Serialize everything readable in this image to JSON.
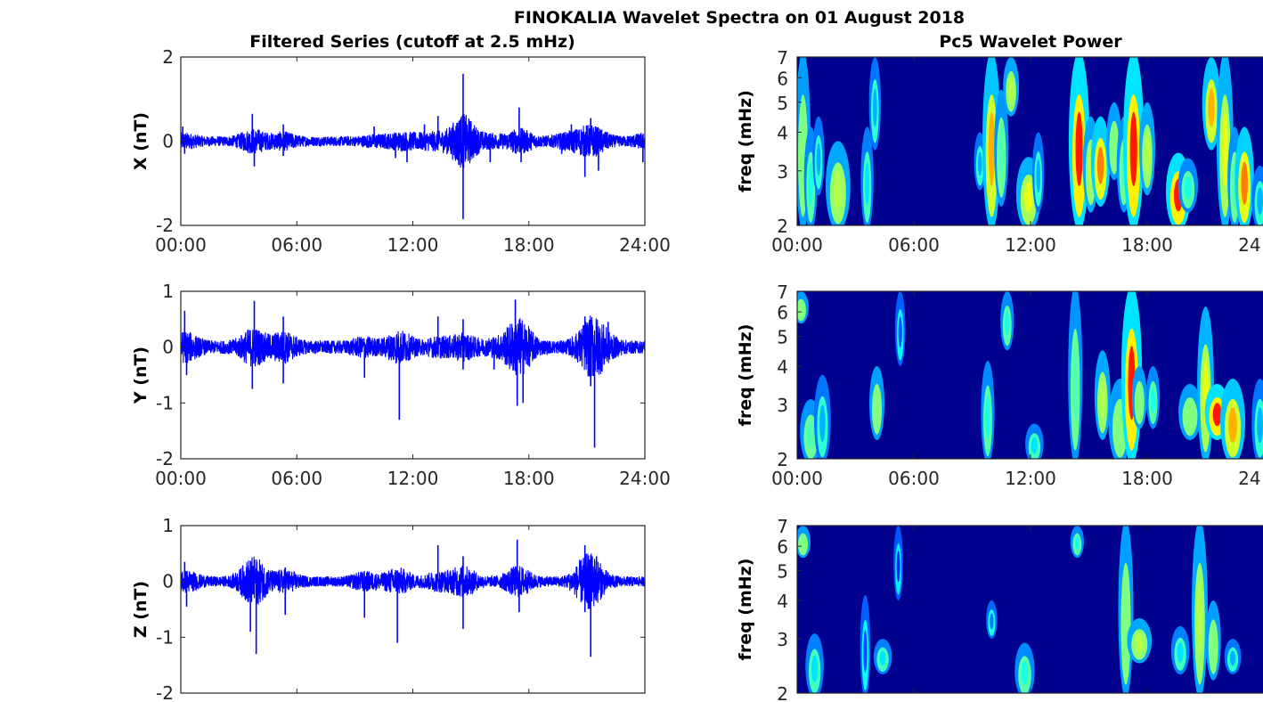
{
  "chart_data": {
    "title": "FINOKALIA Wavelet Spectra on 01 August 2018",
    "colors": {
      "series_line": "#0000ff",
      "axes": "#262626",
      "background_low": "#00008f"
    },
    "columns": [
      {
        "title": "Filtered Series (cutoff at 2.5 mHz)",
        "type": "line"
      },
      {
        "title": "Pc5 Wavelet Power",
        "type": "heatmap"
      }
    ],
    "x_ticks": [
      "00:00",
      "06:00",
      "12:00",
      "18:00",
      "24:00"
    ],
    "x_range_hours": [
      0,
      24
    ],
    "line_panels": [
      {
        "component": "X",
        "ylabel": "X (nT)",
        "ylim": [
          -2,
          2
        ],
        "yticks": [
          "2",
          "0",
          "-2"
        ],
        "ytick_values": [
          2,
          0,
          -2
        ],
        "show_xticks": true,
        "noise_amplitude": 0.09,
        "spikes": [
          [
            0.1,
            0.35
          ],
          [
            0.2,
            -0.3
          ],
          [
            3.7,
            0.65
          ],
          [
            3.8,
            -0.6
          ],
          [
            5.3,
            0.4
          ],
          [
            5.3,
            -0.35
          ],
          [
            10.0,
            0.35
          ],
          [
            11.1,
            -0.4
          ],
          [
            11.7,
            -0.5
          ],
          [
            12.6,
            0.4
          ],
          [
            13.3,
            0.6
          ],
          [
            14.6,
            1.6
          ],
          [
            14.6,
            -1.85
          ],
          [
            16.0,
            -0.5
          ],
          [
            17.5,
            0.8
          ],
          [
            17.6,
            -0.5
          ],
          [
            19.7,
            -0.3
          ],
          [
            20.2,
            0.4
          ],
          [
            20.9,
            -0.85
          ],
          [
            21.2,
            0.55
          ],
          [
            21.6,
            -0.7
          ],
          [
            23.9,
            -0.5
          ]
        ]
      },
      {
        "component": "Y",
        "ylabel": "Y (nT)",
        "ylim": [
          -2,
          1
        ],
        "yticks": [
          "1",
          "0",
          "-1",
          "-2"
        ],
        "ytick_values": [
          1,
          0,
          -1,
          -2
        ],
        "show_xticks": true,
        "noise_amplitude": 0.09,
        "spikes": [
          [
            0.2,
            0.65
          ],
          [
            0.3,
            -0.5
          ],
          [
            3.8,
            0.83
          ],
          [
            3.7,
            -0.75
          ],
          [
            5.3,
            0.55
          ],
          [
            5.3,
            -0.65
          ],
          [
            9.5,
            -0.55
          ],
          [
            11.3,
            -1.3
          ],
          [
            13.3,
            0.55
          ],
          [
            14.6,
            0.5
          ],
          [
            14.6,
            -0.4
          ],
          [
            16.2,
            -0.4
          ],
          [
            17.3,
            0.85
          ],
          [
            17.4,
            -1.05
          ],
          [
            17.7,
            -1.0
          ],
          [
            20.9,
            0.55
          ],
          [
            21.2,
            -0.7
          ],
          [
            21.4,
            -1.8
          ],
          [
            22.1,
            0.45
          ]
        ]
      },
      {
        "component": "Z",
        "ylabel": "Z (nT)",
        "ylim": [
          -2,
          1
        ],
        "yticks": [
          "1",
          "0",
          "-1",
          "-2"
        ],
        "ytick_values": [
          1,
          0,
          -1,
          -2
        ],
        "show_xticks": false,
        "noise_amplitude": 0.07,
        "spikes": [
          [
            0.2,
            0.35
          ],
          [
            0.3,
            -0.45
          ],
          [
            3.6,
            0.22
          ],
          [
            3.6,
            -0.9
          ],
          [
            3.9,
            -1.3
          ],
          [
            5.4,
            0.25
          ],
          [
            5.4,
            -0.6
          ],
          [
            9.5,
            -0.65
          ],
          [
            11.2,
            -1.1
          ],
          [
            13.3,
            0.65
          ],
          [
            14.6,
            0.45
          ],
          [
            14.6,
            -0.85
          ],
          [
            17.4,
            0.75
          ],
          [
            17.5,
            -0.55
          ],
          [
            20.9,
            0.65
          ],
          [
            20.9,
            -0.55
          ],
          [
            21.2,
            -1.35
          ],
          [
            21.5,
            0.45
          ]
        ]
      }
    ],
    "wavelet_panels": [
      {
        "ylabel": "freq (mHz)",
        "ylim": [
          2,
          7
        ],
        "yscale": "log",
        "yticks": [
          "2",
          "3",
          "4",
          "5",
          "6",
          "7"
        ],
        "ytick_values": [
          2,
          3,
          4,
          5,
          6,
          7
        ],
        "show_xticks": true,
        "blobs_hour_fmin_fmax_power": [
          [
            0.3,
            2,
            7,
            0.5
          ],
          [
            0.7,
            2,
            4,
            0.4
          ],
          [
            1.1,
            2.5,
            4.5,
            0.3
          ],
          [
            2.1,
            2,
            3.6,
            0.55
          ],
          [
            3.6,
            2,
            4,
            0.35
          ],
          [
            4.0,
            3.5,
            7,
            0.3
          ],
          [
            9.4,
            2.6,
            4,
            0.3
          ],
          [
            10.0,
            2,
            7,
            0.7
          ],
          [
            10.5,
            2.3,
            5.5,
            0.45
          ],
          [
            11.0,
            4.5,
            7,
            0.55
          ],
          [
            11.9,
            2,
            3.2,
            0.6
          ],
          [
            12.4,
            2.2,
            4,
            0.3
          ],
          [
            14.5,
            2,
            7,
            0.85
          ],
          [
            15.1,
            2.2,
            4.5,
            0.55
          ],
          [
            15.6,
            2.3,
            4.5,
            0.75
          ],
          [
            16.3,
            2.8,
            5,
            0.5
          ],
          [
            16.8,
            2.2,
            4.5,
            0.45
          ],
          [
            17.3,
            2,
            7,
            0.85
          ],
          [
            18.0,
            2.5,
            5,
            0.55
          ],
          [
            19.6,
            2,
            3.3,
            0.85
          ],
          [
            20.1,
            2.2,
            3.3,
            0.4
          ],
          [
            21.3,
            3.5,
            7,
            0.7
          ],
          [
            22.0,
            2,
            7,
            0.6
          ],
          [
            22.5,
            2,
            4,
            0.45
          ],
          [
            23.0,
            2,
            4,
            0.75
          ],
          [
            23.8,
            2,
            3,
            0.3
          ]
        ]
      },
      {
        "ylabel": "freq (mHz)",
        "ylim": [
          2,
          7
        ],
        "yscale": "log",
        "yticks": [
          "2",
          "3",
          "4",
          "5",
          "6",
          "7"
        ],
        "ytick_values": [
          2,
          3,
          4,
          5,
          6,
          7
        ],
        "show_xticks": true,
        "blobs_hour_fmin_fmax_power": [
          [
            0.2,
            5.5,
            7,
            0.5
          ],
          [
            0.7,
            2,
            3,
            0.45
          ],
          [
            1.3,
            2,
            3.6,
            0.3
          ],
          [
            4.1,
            2.3,
            4,
            0.5
          ],
          [
            5.3,
            4,
            7,
            0.2
          ],
          [
            9.8,
            2,
            4,
            0.4
          ],
          [
            10.8,
            4.5,
            7,
            0.4
          ],
          [
            12.2,
            2,
            2.5,
            0.35
          ],
          [
            14.3,
            2,
            7,
            0.45
          ],
          [
            15.7,
            2.3,
            4.5,
            0.55
          ],
          [
            16.6,
            2,
            3.5,
            0.5
          ],
          [
            17.2,
            2,
            7,
            0.85
          ],
          [
            17.6,
            2.5,
            4,
            0.5
          ],
          [
            18.3,
            2.5,
            4,
            0.4
          ],
          [
            20.2,
            2.3,
            3.5,
            0.5
          ],
          [
            21.0,
            2,
            6,
            0.6
          ],
          [
            21.6,
            2.3,
            3.5,
            0.85
          ],
          [
            22.4,
            2,
            3.5,
            0.7
          ],
          [
            23.8,
            2,
            3.5,
            0.3
          ]
        ]
      },
      {
        "ylabel": "freq (mHz)",
        "ylim": [
          2,
          7
        ],
        "yscale": "log",
        "yticks": [
          "2",
          "3",
          "4",
          "5",
          "6",
          "7"
        ],
        "ytick_values": [
          2,
          3,
          4,
          5,
          6,
          7
        ],
        "show_xticks": false,
        "blobs_hour_fmin_fmax_power": [
          [
            0.3,
            5.5,
            7,
            0.5
          ],
          [
            0.9,
            2,
            3,
            0.35
          ],
          [
            3.5,
            2,
            4,
            0.2
          ],
          [
            4.4,
            2.3,
            3,
            0.35
          ],
          [
            5.2,
            4,
            7,
            0.15
          ],
          [
            10.0,
            3,
            4,
            0.25
          ],
          [
            11.7,
            2,
            2.8,
            0.4
          ],
          [
            14.4,
            5.5,
            7,
            0.4
          ],
          [
            16.9,
            2,
            7,
            0.5
          ],
          [
            17.6,
            2.5,
            3.5,
            0.55
          ],
          [
            19.7,
            2.3,
            3.3,
            0.35
          ],
          [
            20.7,
            2,
            7,
            0.55
          ],
          [
            21.4,
            2.2,
            4,
            0.5
          ],
          [
            22.4,
            2.3,
            3,
            0.3
          ]
        ]
      }
    ]
  }
}
